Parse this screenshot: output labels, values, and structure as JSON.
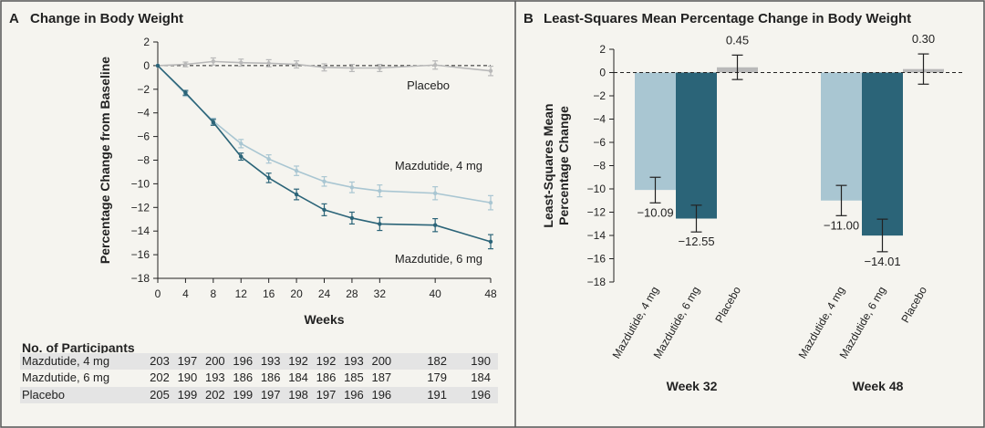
{
  "colors": {
    "placebo": "#b9b9b9",
    "mazdutide_4mg": "#a9c6d2",
    "mazdutide_6mg": "#2b6478",
    "border": "#555555",
    "background": "#f5f4ef",
    "table_band": "#e4e4e4"
  },
  "panel_a": {
    "letter": "A",
    "title": "Change in Body Weight",
    "table_title": "No. of Participants"
  },
  "panel_b": {
    "letter": "B",
    "title": "Least-Squares Mean Percentage Change in Body Weight"
  },
  "chart_data": [
    {
      "type": "line",
      "title": "Change in Body Weight",
      "xlabel": "Weeks",
      "ylabel": "Percentage Change from Baseline",
      "xlim": [
        0,
        48
      ],
      "ylim": [
        -18,
        2
      ],
      "x_ticks": [
        0,
        4,
        8,
        12,
        16,
        20,
        24,
        28,
        32,
        40,
        48
      ],
      "y_ticks": [
        2,
        0,
        -2,
        -4,
        -6,
        -8,
        -10,
        -12,
        -14,
        -16,
        -18
      ],
      "reference_line": 0,
      "x": [
        0,
        4,
        8,
        12,
        16,
        20,
        24,
        28,
        32,
        40,
        48
      ],
      "series": [
        {
          "name": "Placebo",
          "color_key": "placebo",
          "values": [
            0,
            0.1,
            0.35,
            0.25,
            0.2,
            0.1,
            -0.15,
            -0.2,
            -0.2,
            0.05,
            -0.45
          ],
          "error": [
            0.1,
            0.2,
            0.3,
            0.3,
            0.3,
            0.3,
            0.3,
            0.3,
            0.3,
            0.35,
            0.4
          ]
        },
        {
          "name": "Mazdutide, 4 mg",
          "color_key": "mazdutide_4mg",
          "values": [
            0,
            -2.4,
            -4.7,
            -6.6,
            -7.9,
            -8.9,
            -9.8,
            -10.3,
            -10.6,
            -10.8,
            -11.6
          ],
          "error": [
            0.1,
            0.2,
            0.25,
            0.35,
            0.35,
            0.4,
            0.4,
            0.45,
            0.5,
            0.55,
            0.6
          ]
        },
        {
          "name": "Mazdutide, 6 mg",
          "color_key": "mazdutide_6mg",
          "values": [
            0,
            -2.3,
            -4.8,
            -7.7,
            -9.5,
            -10.9,
            -12.2,
            -12.9,
            -13.4,
            -13.5,
            -14.9
          ],
          "error": [
            0.1,
            0.2,
            0.25,
            0.3,
            0.4,
            0.45,
            0.5,
            0.5,
            0.55,
            0.55,
            0.6
          ]
        }
      ],
      "participants": {
        "weeks": [
          0,
          4,
          8,
          12,
          16,
          20,
          24,
          28,
          32,
          40,
          48
        ],
        "rows": [
          {
            "label": "Mazdutide, 4 mg",
            "counts": [
              "203",
              "197",
              "200",
              "196",
              "193",
              "192",
              "192",
              "193",
              "200",
              "182",
              "190"
            ]
          },
          {
            "label": "Mazdutide, 6 mg",
            "counts": [
              "202",
              "190",
              "193",
              "186",
              "186",
              "184",
              "186",
              "185",
              "187",
              "179",
              "184"
            ]
          },
          {
            "label": "Placebo",
            "counts": [
              "205",
              "199",
              "202",
              "199",
              "197",
              "198",
              "197",
              "196",
              "196",
              "191",
              "196"
            ]
          }
        ]
      }
    },
    {
      "type": "bar",
      "title": "Least-Squares Mean Percentage Change in Body Weight",
      "ylabel": "Least-Squares Mean Percentage Change",
      "ylim": [
        -18,
        2
      ],
      "y_ticks": [
        2,
        0,
        -2,
        -4,
        -6,
        -8,
        -10,
        -12,
        -14,
        -16,
        -18
      ],
      "reference_line": 0,
      "groups": [
        {
          "name": "Week 32",
          "bars": [
            {
              "label": "Mazdutide, 4 mg",
              "color_key": "mazdutide_4mg",
              "value": -10.09,
              "value_label": "−10.09",
              "ci": [
                -11.2,
                -9.0
              ]
            },
            {
              "label": "Mazdutide, 6 mg",
              "color_key": "mazdutide_6mg",
              "value": -12.55,
              "value_label": "−12.55",
              "ci": [
                -13.7,
                -11.4
              ]
            },
            {
              "label": "Placebo",
              "color_key": "placebo",
              "value": 0.45,
              "value_label": "0.45",
              "ci": [
                -0.6,
                1.5
              ]
            }
          ]
        },
        {
          "name": "Week 48",
          "bars": [
            {
              "label": "Mazdutide, 4 mg",
              "color_key": "mazdutide_4mg",
              "value": -11.0,
              "value_label": "−11.00",
              "ci": [
                -12.3,
                -9.7
              ]
            },
            {
              "label": "Mazdutide, 6 mg",
              "color_key": "mazdutide_6mg",
              "value": -14.01,
              "value_label": "−14.01",
              "ci": [
                -15.4,
                -12.6
              ]
            },
            {
              "label": "Placebo",
              "color_key": "placebo",
              "value": 0.3,
              "value_label": "0.30",
              "ci": [
                -1.0,
                1.6
              ]
            }
          ]
        }
      ]
    }
  ]
}
